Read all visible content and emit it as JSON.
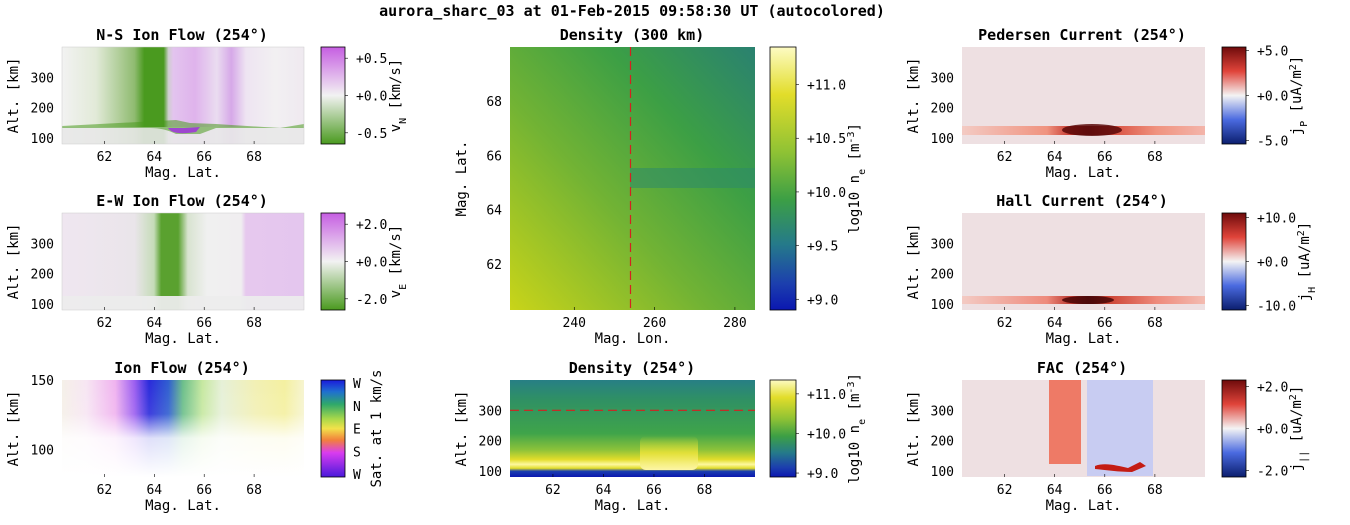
{
  "figure_title": "aurora_sharc_03 at 01-Feb-2015 09:58:30 UT (autocolored)",
  "chart_data": [
    {
      "id": "ns_flow",
      "type": "heatmap",
      "title": "N-S Ion Flow (254°)",
      "xlabel": "Mag. Lat.",
      "ylabel": "Alt. [km]",
      "xlim": [
        60.3,
        70
      ],
      "ylim": [
        80,
        400
      ],
      "xticks": [
        62,
        64,
        66,
        68
      ],
      "yticks": [
        100,
        200,
        300
      ],
      "colorbar": {
        "label": "v_N [km/s]",
        "range": [
          -0.65,
          0.65
        ],
        "ticks": [
          0.5,
          0.0,
          -0.5
        ],
        "ticklabels": [
          "+0.5",
          "+0.0",
          "-0.5"
        ],
        "colors": [
          "#4a9a1f",
          "#f2f2f2",
          "#c65ee2"
        ]
      },
      "features": [
        {
          "lat": [
            63.6,
            64.9
          ],
          "value": -0.6,
          "desc": "southward flow band"
        },
        {
          "lat": [
            65.2,
            69.5
          ],
          "value": 0.25,
          "desc": "weak northward flow"
        }
      ]
    },
    {
      "id": "ew_flow",
      "type": "heatmap",
      "title": "E-W Ion Flow (254°)",
      "xlabel": "Mag. Lat.",
      "ylabel": "Alt. [km]",
      "xlim": [
        60.3,
        70
      ],
      "ylim": [
        80,
        400
      ],
      "xticks": [
        62,
        64,
        66,
        68
      ],
      "yticks": [
        100,
        200,
        300
      ],
      "colorbar": {
        "label": "v_E [km/s]",
        "range": [
          -2.6,
          2.6
        ],
        "ticks": [
          2.0,
          0.0,
          -2.0
        ],
        "ticklabels": [
          "+2.0",
          "+0.0",
          "-2.0"
        ],
        "colors": [
          "#4a9a1f",
          "#f2f2f2",
          "#c65ee2"
        ]
      },
      "features": [
        {
          "lat": [
            64.0,
            65.5
          ],
          "value": -1.8,
          "desc": "westward flow channel"
        },
        {
          "lat": [
            67.4,
            70.0
          ],
          "value": 0.9,
          "desc": "eastward flow"
        }
      ]
    },
    {
      "id": "ion_flow",
      "type": "heatmap",
      "title": "Ion Flow (254°)",
      "xlabel": "Mag. Lat.",
      "ylabel": "Alt. [km]",
      "xlim": [
        60.3,
        70
      ],
      "ylim": [
        80,
        150
      ],
      "xticks": [
        62,
        64,
        66,
        68
      ],
      "yticks": [
        100,
        150
      ],
      "colorbar": {
        "label": "Sat. at 1 km/s",
        "ticklabels": [
          "W",
          "N",
          "E",
          "S",
          "W"
        ],
        "colors": [
          "#1a1adb",
          "#2fa86a",
          "#f2e24a",
          "#d93cf0",
          "#4a1adb"
        ]
      }
    },
    {
      "id": "density_map",
      "type": "heatmap",
      "title": "Density (300 km)",
      "xlabel": "Mag. Lon.",
      "ylabel": "Mag. Lat.",
      "xlim": [
        224,
        285
      ],
      "ylim": [
        60.3,
        70
      ],
      "xticks": [
        240,
        260,
        280
      ],
      "yticks": [
        62,
        64,
        66,
        68
      ],
      "reference_line": {
        "axis": "x",
        "value": 254
      },
      "colorbar": {
        "label": "log10 n_e [m^-3]",
        "range": [
          8.9,
          11.35
        ],
        "ticks": [
          11.0,
          10.5,
          10.0,
          9.5,
          9.0
        ],
        "ticklabels": [
          "+11.0",
          "+10.5",
          "+10.0",
          "+9.5",
          "+9.0"
        ]
      }
    },
    {
      "id": "density_alt",
      "type": "heatmap",
      "title": "Density (254°)",
      "xlabel": "Mag. Lat.",
      "ylabel": "Alt. [km]",
      "xlim": [
        60.3,
        70
      ],
      "ylim": [
        80,
        400
      ],
      "xticks": [
        62,
        64,
        66,
        68
      ],
      "yticks": [
        100,
        200,
        300
      ],
      "reference_line": {
        "axis": "y",
        "value": 300
      },
      "colorbar": {
        "label": "log10 n_e [m^-3]",
        "range": [
          8.9,
          11.35
        ],
        "ticks": [
          11.0,
          10.0,
          9.0
        ],
        "ticklabels": [
          "+11.0",
          "+10.0",
          "+9.0"
        ]
      }
    },
    {
      "id": "pedersen",
      "type": "heatmap",
      "title": "Pedersen Current (254°)",
      "xlabel": "Mag. Lat.",
      "ylabel": "Alt. [km]",
      "xlim": [
        60.3,
        70
      ],
      "ylim": [
        80,
        400
      ],
      "xticks": [
        62,
        64,
        66,
        68
      ],
      "yticks": [
        100,
        200,
        300
      ],
      "colorbar": {
        "label": "j_P [uA/m^2]",
        "range": [
          -5.4,
          5.4
        ],
        "ticks": [
          5.0,
          0.0,
          -5.0
        ],
        "ticklabels": [
          "+5.0",
          "+0.0",
          "-5.0"
        ]
      },
      "features": [
        {
          "alt": 120,
          "peak_lat": 65.4,
          "value": 4.8,
          "desc": "current layer"
        }
      ]
    },
    {
      "id": "hall",
      "type": "heatmap",
      "title": "Hall Current (254°)",
      "xlabel": "Mag. Lat.",
      "ylabel": "Alt. [km]",
      "xlim": [
        60.3,
        70
      ],
      "ylim": [
        80,
        400
      ],
      "xticks": [
        62,
        64,
        66,
        68
      ],
      "yticks": [
        100,
        200,
        300
      ],
      "colorbar": {
        "label": "j_H [uA/m^2]",
        "range": [
          -11,
          11
        ],
        "ticks": [
          10.0,
          0.0,
          -10.0
        ],
        "ticklabels": [
          "+10.0",
          "+0.0",
          "-10.0"
        ]
      },
      "features": [
        {
          "alt": 110,
          "peak_lat": 65.3,
          "value": 9.5,
          "desc": "current layer"
        }
      ]
    },
    {
      "id": "fac",
      "type": "heatmap",
      "title": "FAC (254°)",
      "xlabel": "Mag. Lat.",
      "ylabel": "Alt. [km]",
      "xlim": [
        60.3,
        70
      ],
      "ylim": [
        80,
        400
      ],
      "xticks": [
        62,
        64,
        66,
        68
      ],
      "yticks": [
        100,
        200,
        300
      ],
      "colorbar": {
        "label": "j_|| [uA/m^2]",
        "range": [
          -2.3,
          2.3
        ],
        "ticks": [
          2.0,
          0.0,
          -2.0
        ],
        "ticklabels": [
          "+2.0",
          "+0.0",
          "-2.0"
        ]
      },
      "features": [
        {
          "lat": [
            63.8,
            65.0
          ],
          "value": 1.1,
          "desc": "upward FAC sheet"
        },
        {
          "lat": [
            65.3,
            67.9
          ],
          "value": -0.5,
          "desc": "downward FAC sheet"
        }
      ]
    }
  ]
}
